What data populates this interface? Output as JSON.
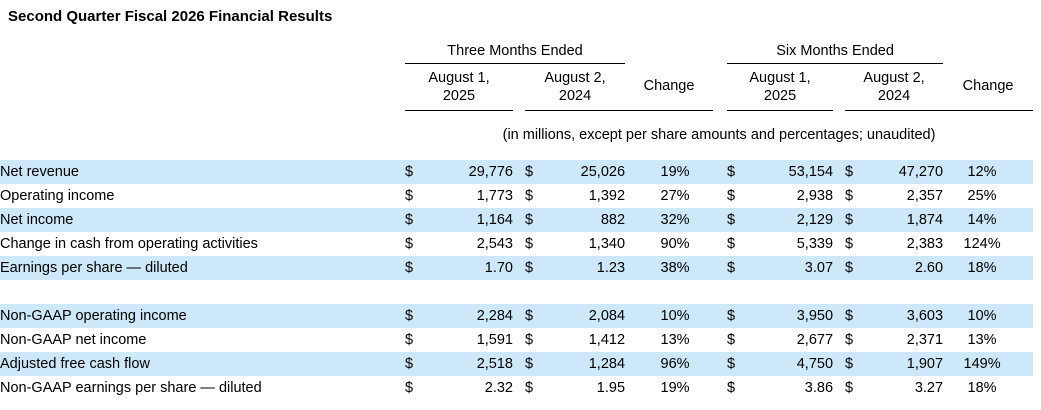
{
  "title": "Second Quarter Fiscal 2026 Financial Results",
  "table": {
    "note": "(in millions, except per share amounts and percentages; unaudited)",
    "currency_symbol": "$",
    "shaded_row_color": "#cde9f9",
    "header": {
      "three_months": "Three Months Ended",
      "six_months": "Six Months Ended",
      "period1_line1": "August 1,",
      "period1_line2": "2025",
      "period2_line1": "August 2,",
      "period2_line2": "2024",
      "change": "Change"
    },
    "rows": [
      {
        "label": "Net revenue",
        "tm_aug1_2025": "29,776",
        "tm_aug2_2024": "25,026",
        "tm_change": "19%",
        "sm_aug1_2025": "53,154",
        "sm_aug2_2024": "47,270",
        "sm_change": "12%",
        "shaded": true
      },
      {
        "label": "Operating income",
        "tm_aug1_2025": "1,773",
        "tm_aug2_2024": "1,392",
        "tm_change": "27%",
        "sm_aug1_2025": "2,938",
        "sm_aug2_2024": "2,357",
        "sm_change": "25%",
        "shaded": false
      },
      {
        "label": "Net income",
        "tm_aug1_2025": "1,164",
        "tm_aug2_2024": "882",
        "tm_change": "32%",
        "sm_aug1_2025": "2,129",
        "sm_aug2_2024": "1,874",
        "sm_change": "14%",
        "shaded": true
      },
      {
        "label": "Change in cash from operating activities",
        "tm_aug1_2025": "2,543",
        "tm_aug2_2024": "1,340",
        "tm_change": "90%",
        "sm_aug1_2025": "5,339",
        "sm_aug2_2024": "2,383",
        "sm_change": "124%",
        "shaded": false
      },
      {
        "label": "Earnings per share — diluted",
        "tm_aug1_2025": "1.70",
        "tm_aug2_2024": "1.23",
        "tm_change": "38%",
        "sm_aug1_2025": "3.07",
        "sm_aug2_2024": "2.60",
        "sm_change": "18%",
        "shaded": true
      },
      {
        "spacer": true
      },
      {
        "label": "Non-GAAP operating income",
        "tm_aug1_2025": "2,284",
        "tm_aug2_2024": "2,084",
        "tm_change": "10%",
        "sm_aug1_2025": "3,950",
        "sm_aug2_2024": "3,603",
        "sm_change": "10%",
        "shaded": true
      },
      {
        "label": "Non-GAAP net income",
        "tm_aug1_2025": "1,591",
        "tm_aug2_2024": "1,412",
        "tm_change": "13%",
        "sm_aug1_2025": "2,677",
        "sm_aug2_2024": "2,371",
        "sm_change": "13%",
        "shaded": false
      },
      {
        "label": "Adjusted free cash flow",
        "tm_aug1_2025": "2,518",
        "tm_aug2_2024": "1,284",
        "tm_change": "96%",
        "sm_aug1_2025": "4,750",
        "sm_aug2_2024": "1,907",
        "sm_change": "149%",
        "shaded": true
      },
      {
        "label": "Non-GAAP earnings per share — diluted",
        "tm_aug1_2025": "2.32",
        "tm_aug2_2024": "1.95",
        "tm_change": "19%",
        "sm_aug1_2025": "3.86",
        "sm_aug2_2024": "3.27",
        "sm_change": "18%",
        "shaded": false
      }
    ]
  }
}
